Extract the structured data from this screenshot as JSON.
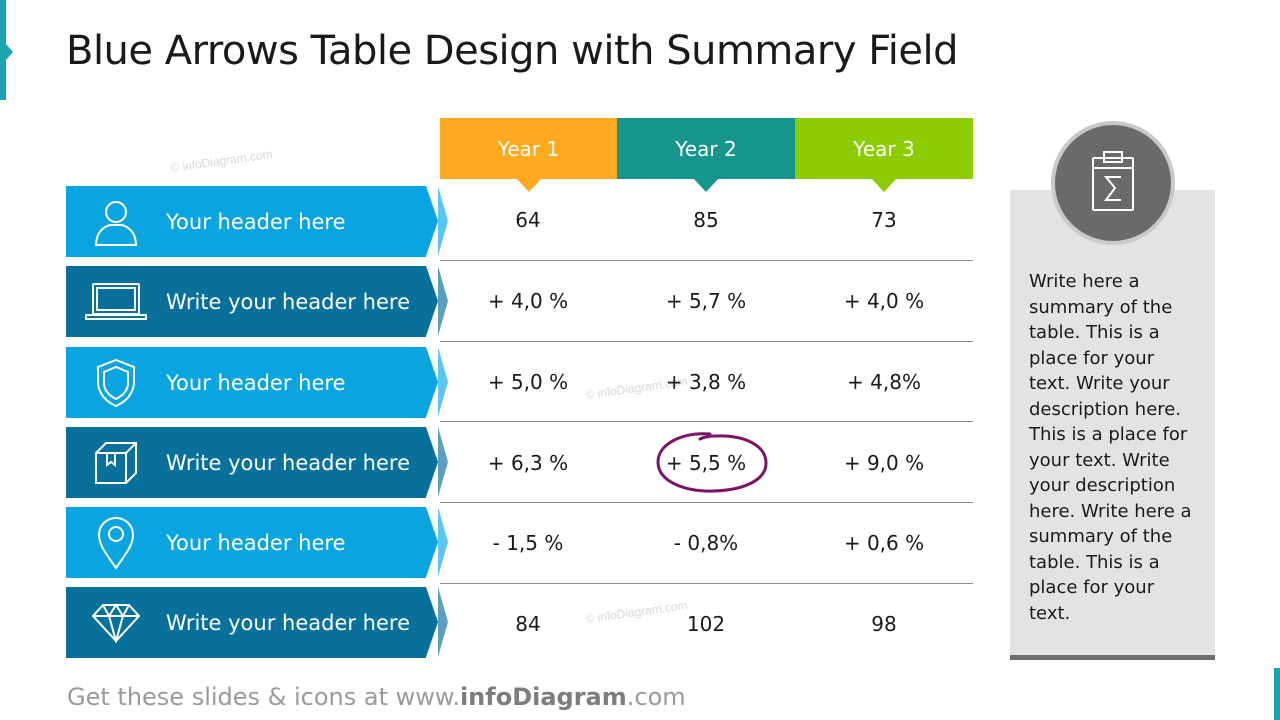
{
  "title": "Blue Arrows Table Design with Summary Field",
  "colors": {
    "light_blue": "#0aa5e0",
    "dark_blue": "#08709a",
    "year1": "#ffa91e",
    "year2": "#16958d",
    "year3": "#8ccc00",
    "circle_mark": "#7b1466"
  },
  "years": [
    {
      "label": "Year 1"
    },
    {
      "label": "Year 2"
    },
    {
      "label": "Year 3"
    }
  ],
  "rows": [
    {
      "label": "Your header here",
      "icon": "person-icon",
      "values": [
        "64",
        "85",
        "73"
      ]
    },
    {
      "label": "Write your header here",
      "icon": "laptop-icon",
      "values": [
        "+ 4,0 %",
        "+ 5,7 %",
        "+ 4,0 %"
      ]
    },
    {
      "label": "Your header here",
      "icon": "shield-icon",
      "values": [
        "+ 5,0 %",
        "+ 3,8 %",
        "+ 4,8%"
      ]
    },
    {
      "label": "Write your header here",
      "icon": "box-icon",
      "values": [
        "+ 6,3 %",
        "+ 5,5 %",
        "+ 9,0 %"
      ]
    },
    {
      "label": "Your header here",
      "icon": "location-pin-icon",
      "values": [
        "- 1,5 %",
        "- 0,8%",
        "+ 0,6 %"
      ]
    },
    {
      "label": "Write your header here",
      "icon": "diamond-icon",
      "values": [
        "84",
        "102",
        "98"
      ]
    }
  ],
  "summary": {
    "icon": "clipboard-sum-icon",
    "text": "Write here a summary of the table. This is a place for your text. Write your description here. This is a place for your text. Write your description here. Write here a summary of the table. This is a place for your text."
  },
  "footer": {
    "prefix": "Get these slides & icons at www.",
    "brand": "infoDiagram",
    "suffix": ".com"
  },
  "watermark": "© infoDiagram.com"
}
